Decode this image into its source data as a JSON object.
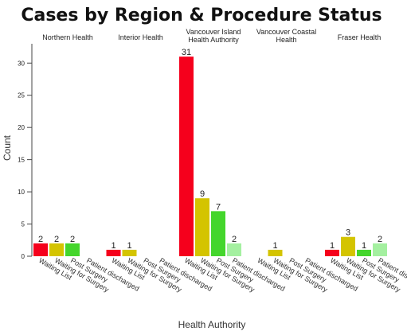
{
  "chart_data": {
    "type": "bar",
    "title": "Cases by Region & Procedure Status",
    "xlabel": "Health Authority",
    "ylabel": "Count",
    "ylim": [
      0,
      33
    ],
    "yticks": [
      "0",
      "5",
      "10",
      "15",
      "20",
      "25",
      "30"
    ],
    "categories": [
      "Waiting List",
      "Waiting for Surgery",
      "Post Surgery",
      "Patient discharged"
    ],
    "colors": [
      "#f5001c",
      "#d4c400",
      "#44d62c",
      "#a4f0a0"
    ],
    "grid": false,
    "legend": "none",
    "panels": [
      {
        "name": "Northern Health",
        "name_lines": [
          "Northern Health"
        ],
        "values": [
          2,
          2,
          2,
          0
        ],
        "labels": [
          "2",
          "2",
          "2",
          ""
        ]
      },
      {
        "name": "Interior Health",
        "name_lines": [
          "Interior Health"
        ],
        "values": [
          1,
          1,
          0,
          0
        ],
        "labels": [
          "1",
          "1",
          "",
          ""
        ]
      },
      {
        "name": "Vancouver Island Health Authority",
        "name_lines": [
          "Vancouver Island",
          "Health Authority"
        ],
        "values": [
          31,
          9,
          7,
          2
        ],
        "labels": [
          "31",
          "9",
          "7",
          "2"
        ]
      },
      {
        "name": "Vancouver Coastal Health",
        "name_lines": [
          "Vancouver Coastal",
          "Health"
        ],
        "values": [
          0,
          1,
          0,
          0
        ],
        "labels": [
          "",
          "1",
          "",
          ""
        ]
      },
      {
        "name": "Fraser Health",
        "name_lines": [
          "Fraser Health"
        ],
        "values": [
          1,
          3,
          1,
          2
        ],
        "labels": [
          "1",
          "3",
          "1",
          "2"
        ]
      }
    ]
  }
}
